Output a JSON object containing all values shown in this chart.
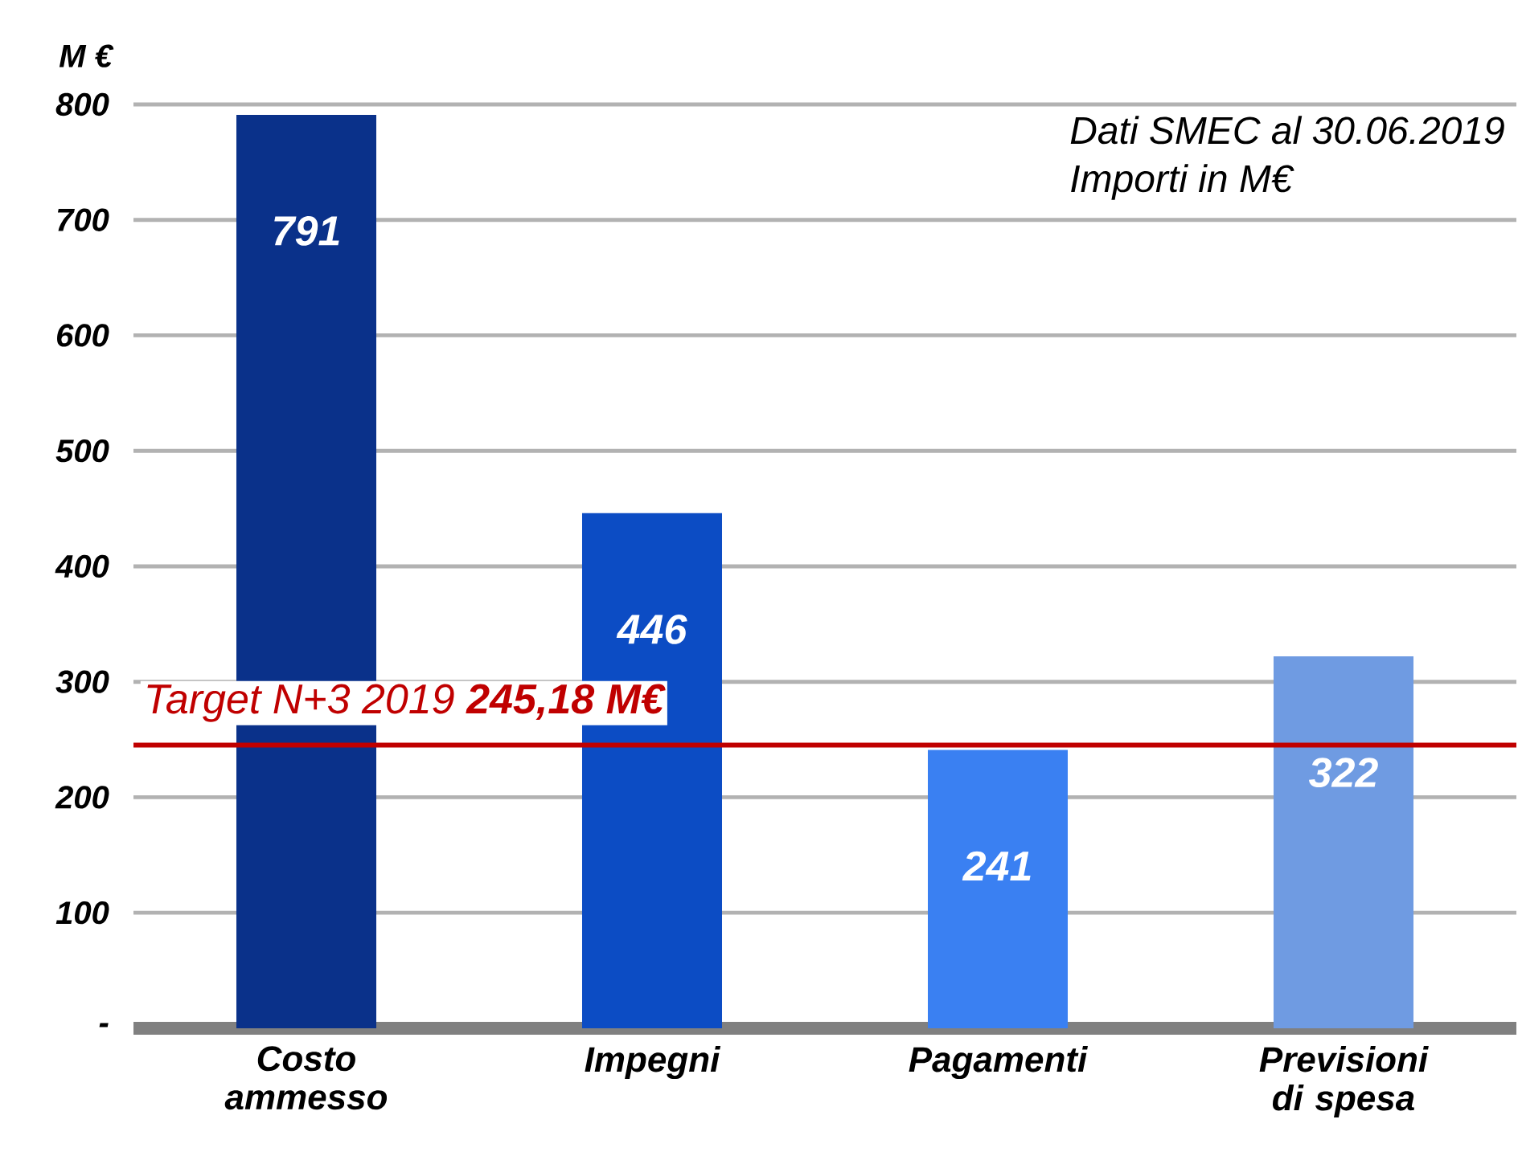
{
  "chart_data": {
    "type": "bar",
    "ylabel": "M €",
    "categories": [
      "Costo ammesso",
      "Impegni",
      "Pagamenti",
      "Previsioni di spesa"
    ],
    "values": [
      791,
      446,
      241,
      322
    ],
    "colors": [
      "#0a318a",
      "#0c4cc4",
      "#3a80f2",
      "#6f9be2"
    ],
    "data_labels": true,
    "ylim": [
      0,
      800
    ],
    "yticks": [
      {
        "value": 0,
        "label": "-"
      },
      100,
      200,
      300,
      400,
      500,
      600,
      700,
      800
    ],
    "grid": "y",
    "ref_lines": [
      {
        "axis": "y",
        "value": 245.18,
        "label": "Target N+3 2019 **245,18 M€**",
        "color": "#c00000"
      }
    ],
    "annotations": [
      "Dati SMEC al 30.06.2019",
      "Importi in M€"
    ]
  }
}
